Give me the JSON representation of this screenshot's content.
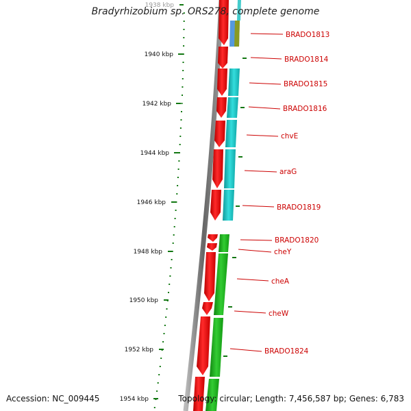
{
  "header": {
    "title": "Bradyrhizobium sp. ORS278, complete genome"
  },
  "footer": {
    "accession": "Accession: NC_009445",
    "stats": "Topology: circular; Length: 7,456,587 bp; Genes: 6,783"
  },
  "ruler": {
    "major_ticks": [
      {
        "kbp": 1938,
        "label": "1938 kbp"
      },
      {
        "kbp": 1940,
        "label": "1940 kbp"
      },
      {
        "kbp": 1942,
        "label": "1942 kbp"
      },
      {
        "kbp": 1944,
        "label": "1944 kbp"
      },
      {
        "kbp": 1946,
        "label": "1946 kbp"
      },
      {
        "kbp": 1948,
        "label": "1948 kbp"
      },
      {
        "kbp": 1950,
        "label": "1950 kbp"
      },
      {
        "kbp": 1952,
        "label": "1952 kbp"
      },
      {
        "kbp": 1954,
        "label": "1954 kbp"
      }
    ]
  },
  "genes": [
    {
      "label": "BRADO1813"
    },
    {
      "label": "BRADO1814"
    },
    {
      "label": "BRADO1815"
    },
    {
      "label": "BRADO1816"
    },
    {
      "label": "chvE"
    },
    {
      "label": "araG"
    },
    {
      "label": "BRADO1819"
    },
    {
      "label": "BRADO1820"
    },
    {
      "label": "cheY"
    },
    {
      "label": "cheA"
    },
    {
      "label": "cheW"
    },
    {
      "label": "BRADO1824"
    }
  ],
  "colors": {
    "gene_label": "#cc0000",
    "gene_block": "#ee1111",
    "cyan_track": "#22cccc",
    "green_track": "#22aa22",
    "blue_track": "#5599dd",
    "ruler_green": "#117711",
    "backbone": "#777777"
  }
}
